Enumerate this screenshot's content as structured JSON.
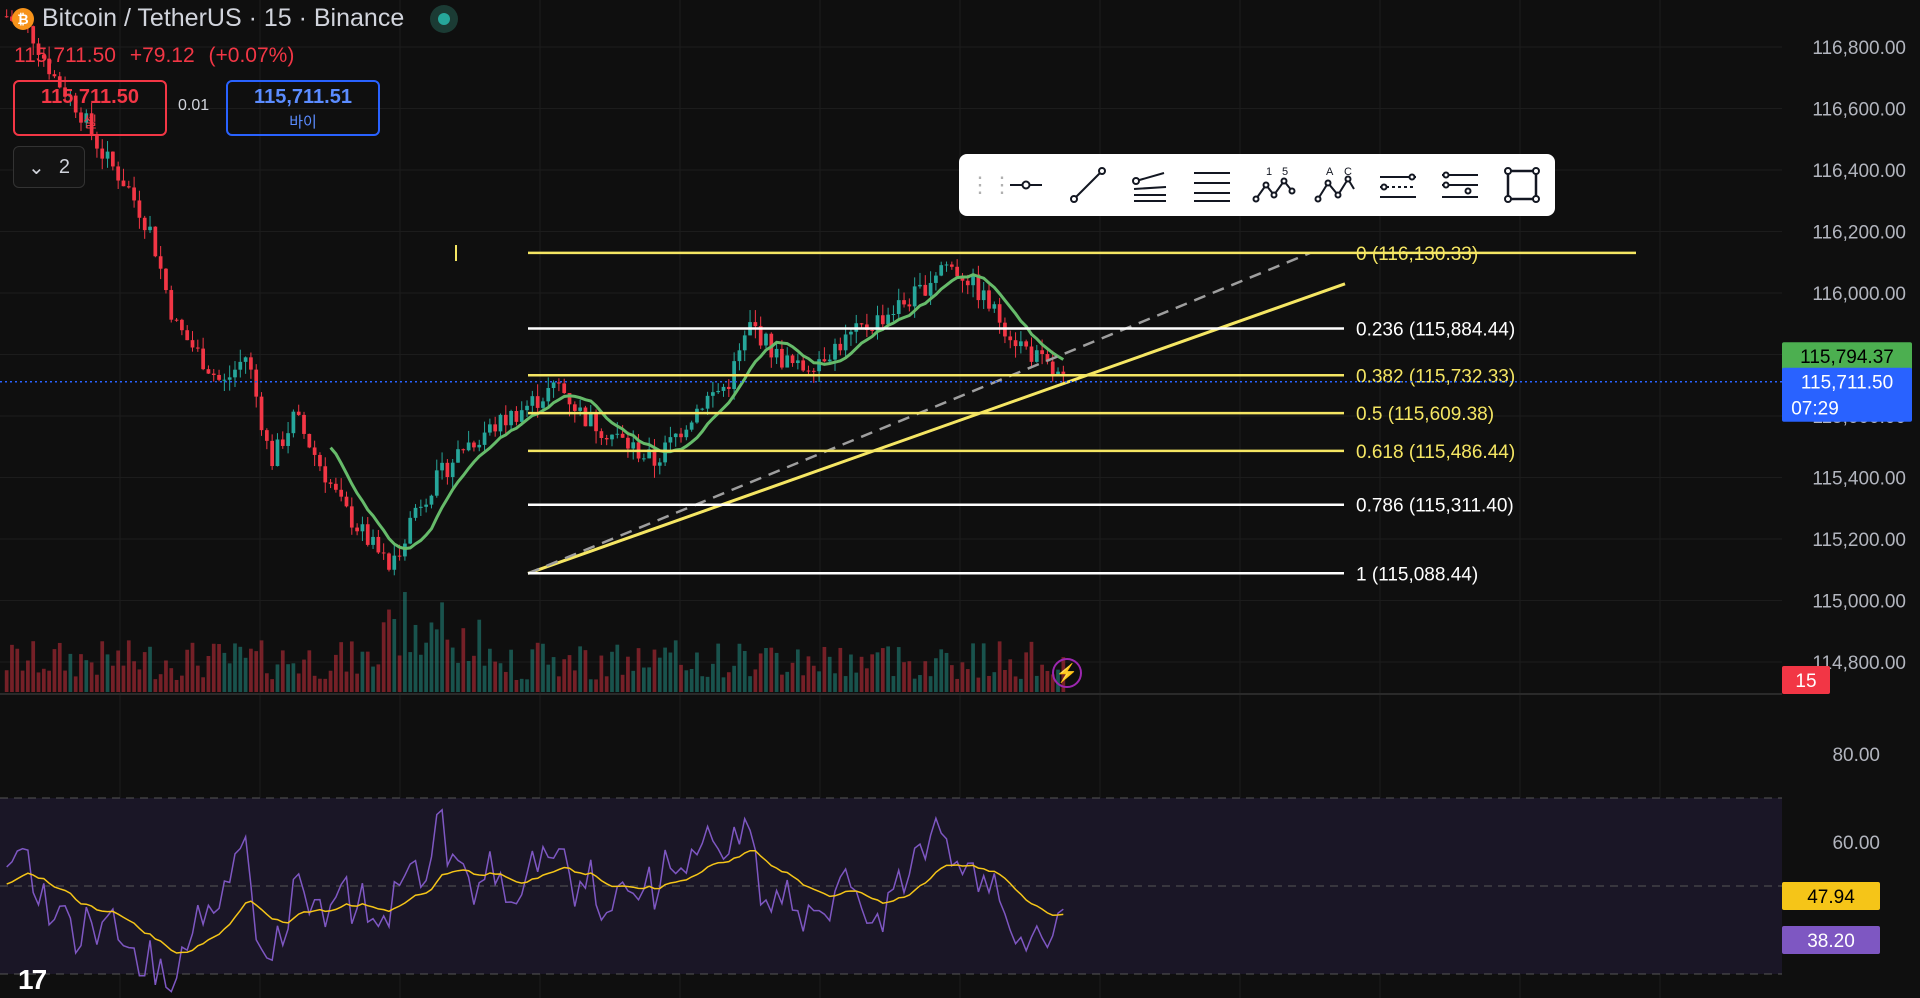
{
  "header": {
    "symbol_title": "Bitcoin / TetherUS · 15 · Binance",
    "coin_glyph": "₿",
    "quote": {
      "price": "115,711.50",
      "change": "+79.12",
      "change_pct": "(+0.07%)"
    },
    "sell": {
      "price": "115,711.50",
      "label": "셀"
    },
    "buy": {
      "price": "115,711.51",
      "label": "바이"
    },
    "spread": "0.01",
    "collapse_count": "2",
    "live_color": "#26a69a"
  },
  "toolbar": {
    "items": [
      {
        "icon": "horizontal-ray-icon"
      },
      {
        "icon": "trend-line-icon"
      },
      {
        "icon": "fib-fan-icon"
      },
      {
        "icon": "fib-retracement-icon"
      },
      {
        "icon": "xabcd-pattern-icon"
      },
      {
        "icon": "abcd-pattern-icon"
      },
      {
        "icon": "fib-channel-icon"
      },
      {
        "icon": "fib-extension-icon"
      },
      {
        "icon": "rectangle-icon"
      }
    ]
  },
  "price_axis": {
    "labels": [
      "116,800.00",
      "116,600.00",
      "116,400.00",
      "116,200.00",
      "116,000.00",
      "115,800.00",
      "115,600.00",
      "115,400.00",
      "115,200.00",
      "115,000.00",
      "114,800.00"
    ],
    "values": [
      116800,
      116600,
      116400,
      116200,
      116000,
      115800,
      115600,
      115400,
      115200,
      115000,
      114800
    ],
    "badges": [
      {
        "text": "115,794.37",
        "value": 115794.37,
        "bg": "#4caf50",
        "fg": "#000000"
      },
      {
        "text": "115,711.50",
        "sub": "07:29",
        "value": 115711.5,
        "bg": "#2962ff",
        "fg": "#ffffff"
      },
      {
        "text": "15",
        "bg": "#f23645",
        "fg": "#ffffff"
      }
    ]
  },
  "fib_levels": [
    {
      "label": "0 (116,130.33)",
      "value": 116130.33,
      "color": "#f5e663"
    },
    {
      "label": "0.236 (115,884.44)",
      "value": 115884.44,
      "color": "#ffffff"
    },
    {
      "label": "0.382 (115,732.33)",
      "value": 115732.33,
      "color": "#f5e663"
    },
    {
      "label": "0.5 (115,609.38)",
      "value": 115609.38,
      "color": "#f5e663"
    },
    {
      "label": "0.618 (115,486.44)",
      "value": 115486.44,
      "color": "#f5e663"
    },
    {
      "label": "0.786 (115,311.40)",
      "value": 115311.4,
      "color": "#ffffff"
    },
    {
      "label": "1 (115,088.44)",
      "value": 115088.44,
      "color": "#ffffff"
    }
  ],
  "rsi_axis": {
    "labels": [
      "80.00",
      "60.00"
    ],
    "values": [
      80,
      60
    ],
    "badges": [
      {
        "text": "47.94",
        "value": 47.94,
        "bg": "#f5c518",
        "fg": "#000000"
      },
      {
        "text": "38.20",
        "value": 38.2,
        "bg": "#7e57c2",
        "fg": "#ffffff"
      }
    ]
  },
  "logo": "17",
  "chart_data": {
    "type": "candlestick",
    "up_color": "#26a69a",
    "down_color": "#f23645",
    "ma_color": "#66bb6a",
    "rsi_color": "#7e57c2",
    "rsi_ma_color": "#f5c518",
    "close_path": [
      116900,
      116850,
      116700,
      116600,
      116450,
      116350,
      116200,
      115900,
      115800,
      115700,
      115800,
      115450,
      115600,
      115450,
      115300,
      115200,
      115100,
      115300,
      115400,
      115500,
      115550,
      115600,
      115650,
      115700,
      115600,
      115550,
      115500,
      115450,
      115550,
      115650,
      115700,
      115900,
      115800,
      115750,
      115800,
      115850,
      115900,
      115950,
      116000,
      116100,
      116050,
      115950,
      115850,
      115780,
      115711.5
    ]
  }
}
